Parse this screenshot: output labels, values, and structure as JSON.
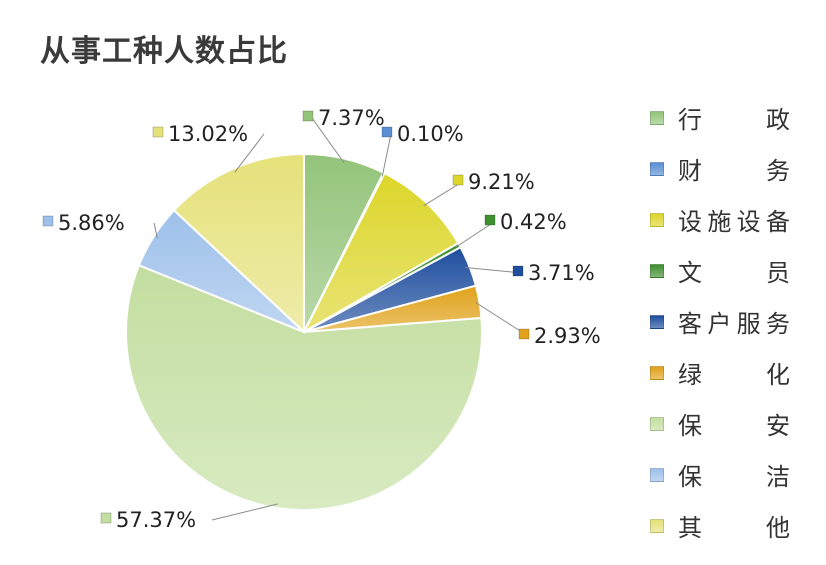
{
  "chart_data": {
    "type": "pie",
    "title": "从事工种人数占比",
    "legend_position": "right",
    "slices": [
      {
        "name": "行政",
        "value": 7.37,
        "label": "7.37%",
        "color": "#93c47a"
      },
      {
        "name": "财务",
        "value": 0.1,
        "label": "0.10%",
        "color": "#5b8fd4"
      },
      {
        "name": "设施设备",
        "value": 9.21,
        "label": "9.21%",
        "color": "#dcd62a"
      },
      {
        "name": "文员",
        "value": 0.42,
        "label": "0.42%",
        "color": "#3e8f2e"
      },
      {
        "name": "客户服务",
        "value": 3.71,
        "label": "3.71%",
        "color": "#1f4e9e"
      },
      {
        "name": "绿化",
        "value": 2.93,
        "label": "2.93%",
        "color": "#e0a21a"
      },
      {
        "name": "保安",
        "value": 57.37,
        "label": "57.37%",
        "color": "#c3dea0"
      },
      {
        "name": "保洁",
        "value": 5.86,
        "label": "5.86%",
        "color": "#9dc0ea"
      },
      {
        "name": "其他",
        "value": 13.02,
        "label": "13.02%",
        "color": "#e5e17a"
      }
    ]
  }
}
